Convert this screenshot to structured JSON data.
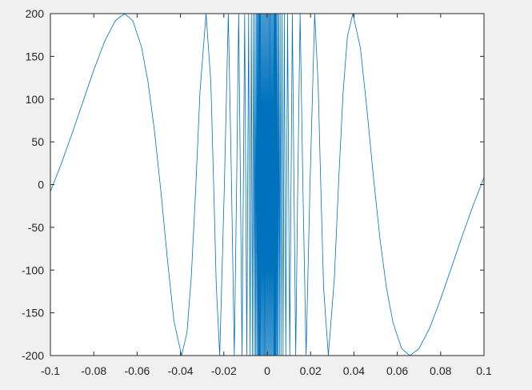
{
  "chart_data": {
    "type": "line",
    "x": [
      -0.1,
      -0.095,
      -0.09,
      -0.085,
      -0.08,
      -0.075,
      -0.07,
      -0.0658,
      -0.062,
      -0.058,
      -0.055,
      -0.052,
      -0.049,
      -0.046,
      -0.043,
      -0.0395,
      -0.037,
      -0.035,
      -0.033,
      -0.031,
      -0.0282,
      -0.026,
      -0.0247,
      -0.0235,
      -0.0219,
      -0.01974,
      -0.01794,
      -0.01645,
      -0.01518,
      -0.0141,
      -0.01316,
      -0.01234,
      -0.01161,
      -0.01039,
      -0.0094,
      -0.00858,
      -0.00789,
      -0.00731,
      -0.00681,
      -0.00637,
      -0.00598,
      -0.00564,
      -0.00533,
      -0.00506,
      -0.00481,
      -0.00459,
      -0.004385,
      -0.004199,
      -0.004027,
      -0.00387,
      -0.003724,
      -0.003588,
      -0.003462,
      -0.003345,
      -0.003235,
      -0.0031,
      -0.0029,
      -0.0027,
      -0.0025,
      -0.0023,
      -0.0021,
      -0.0019,
      -0.0017,
      -0.0015,
      -0.0013,
      -0.0011,
      -0.0009,
      -0.0007,
      -0.0005,
      -0.0003,
      -0.0001,
      0.0001,
      0.0003,
      0.0005,
      0.0007,
      0.0009,
      0.0011,
      0.0013,
      0.0015,
      0.0017,
      0.0019,
      0.0021,
      0.0023,
      0.0025,
      0.0027,
      0.0029,
      0.0031,
      0.003235,
      0.003345,
      0.003462,
      0.003588,
      0.003724,
      0.00387,
      0.004027,
      0.004199,
      0.004385,
      0.00459,
      0.00481,
      0.00506,
      0.00533,
      0.00564,
      0.00598,
      0.00637,
      0.00681,
      0.00731,
      0.00789,
      0.00858,
      0.0094,
      0.01039,
      0.01161,
      0.01234,
      0.01316,
      0.0141,
      0.01518,
      0.01645,
      0.01794,
      0.01974,
      0.0219,
      0.0235,
      0.0247,
      0.026,
      0.0282,
      0.031,
      0.033,
      0.035,
      0.037,
      0.0395,
      0.043,
      0.046,
      0.049,
      0.052,
      0.055,
      0.058,
      0.062,
      0.0658,
      0.07,
      0.075,
      0.08,
      0.085,
      0.09,
      0.095,
      0.1
    ],
    "series": [
      {
        "color": "#0072bd",
        "values": [
          -8.3,
          24.3,
          59.7,
          96.9,
          133.9,
          167.5,
          192.0,
          200,
          191.8,
          161.2,
          120.6,
          63.1,
          -8.8,
          -88.1,
          -159.8,
          -200,
          -173.3,
          -107.4,
          -6.1,
          108.8,
          200,
          119.9,
          0,
          -117.2,
          -200,
          0,
          200,
          0,
          -200,
          0,
          200,
          0,
          -200,
          200,
          -200,
          200,
          -200,
          200,
          -200,
          200,
          -200,
          200,
          -200,
          200,
          -200,
          200,
          -200,
          200,
          -200,
          200,
          -200,
          200,
          -200,
          200,
          -200,
          200,
          -200,
          200,
          -200,
          200,
          -200,
          200,
          -200,
          200,
          -200,
          200,
          -200,
          200,
          -200,
          200,
          -200,
          200,
          -200,
          200,
          -200,
          200,
          -200,
          200,
          -200,
          200,
          -200,
          200,
          -200,
          200,
          -200,
          200,
          -200,
          200,
          -200,
          200,
          -200,
          200,
          -200,
          200,
          -200,
          200,
          -200,
          200,
          -200,
          200,
          -200,
          200,
          -200,
          200,
          -200,
          200,
          -200,
          200,
          -200,
          200,
          0,
          -200,
          0,
          200,
          0,
          -200,
          0,
          200,
          117.2,
          0,
          -119.9,
          -200,
          -108.8,
          6.1,
          107.4,
          173.3,
          200,
          159.8,
          88.1,
          8.8,
          -63.1,
          -120.6,
          -161.2,
          -191.8,
          -200,
          -192.0,
          -167.5,
          -133.9,
          -96.9,
          -59.7,
          -24.3,
          8.3
        ]
      }
    ],
    "xlim": [
      -0.1,
      0.1
    ],
    "xticks": [
      -0.1,
      -0.08,
      -0.06,
      -0.04,
      -0.02,
      0,
      0.02,
      0.04,
      0.06,
      0.08,
      0.1
    ],
    "ylim": [
      -200,
      200
    ],
    "yticks": [
      -200,
      -150,
      -100,
      -50,
      0,
      50,
      100,
      150,
      200
    ]
  }
}
